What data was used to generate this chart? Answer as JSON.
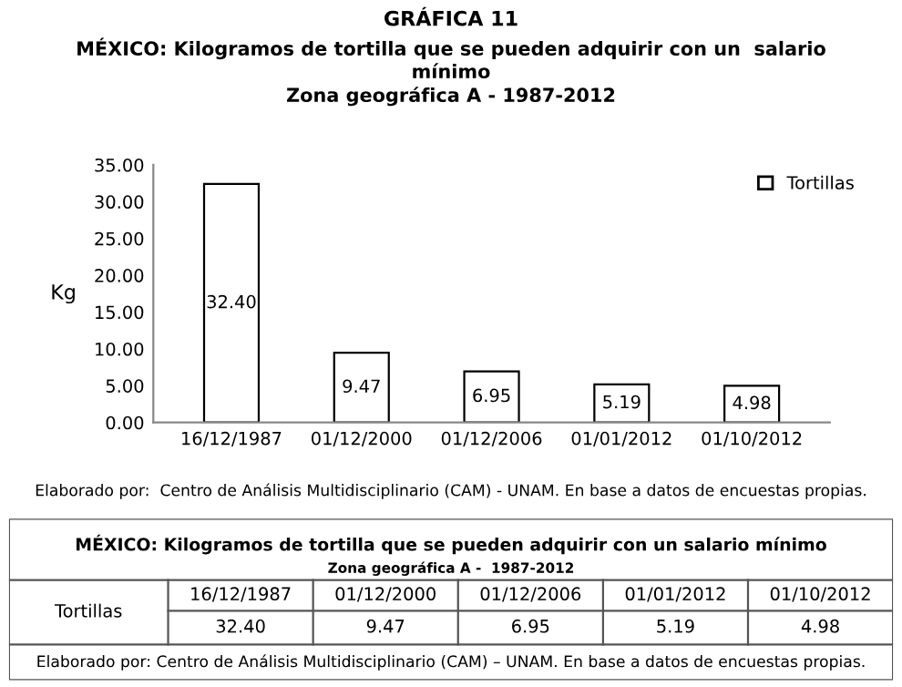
{
  "chart_data": {
    "type": "bar",
    "title": "GRÁFICA 11",
    "subtitle": "MÉXICO: Kilogramos de tortilla que se pueden adquirir con un  salario\nmínimo\nZona geográfica A - 1987-2012",
    "ylabel": "Kg",
    "categories": [
      "16/12/1987",
      "01/12/2000",
      "01/12/2006",
      "01/01/2012",
      "01/10/2012"
    ],
    "series": [
      {
        "name": "Tortillas",
        "color": "#ffffff",
        "values": [
          32.4,
          9.47,
          6.95,
          5.19,
          4.98
        ],
        "value_labels": [
          "32.40",
          "9.47",
          "6.95",
          "5.19",
          "4.98"
        ]
      }
    ],
    "ylim": [
      0,
      35
    ],
    "yticks": [
      {
        "value": 0,
        "label": "0.00"
      },
      {
        "value": 5,
        "label": "5.00"
      },
      {
        "value": 10,
        "label": "10.00"
      },
      {
        "value": 15,
        "label": "15.00"
      },
      {
        "value": 20,
        "label": "20.00"
      },
      {
        "value": 25,
        "label": "25.00"
      },
      {
        "value": 30,
        "label": "30.00"
      },
      {
        "value": 35,
        "label": "35.00"
      }
    ],
    "legend": "top right",
    "grid": false,
    "annotations": [
      "Elaborado por:  Centro de Análisis Multidisciplinario (CAM) - UNAM. En base a datos de encuestas propias.",
      "MÉXICO: Kilogramos de tortilla que se pueden adquirir con un salario mínimo",
      "Zona geográfica A -  1987-2012",
      "Elaborado por: Centro de Análisis Multidisciplinario (CAM) – UNAM. En base a datos de encuestas propias."
    ]
  }
}
